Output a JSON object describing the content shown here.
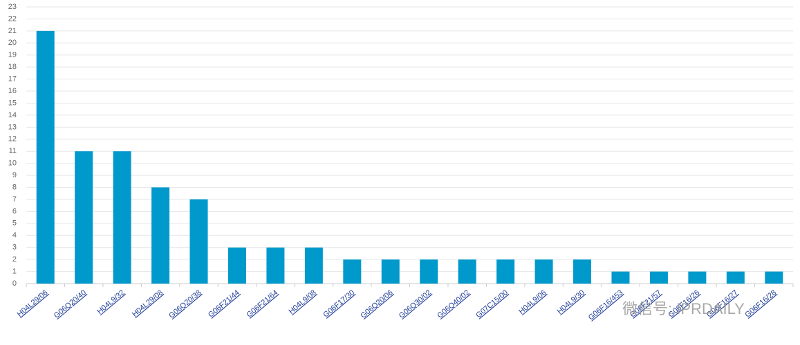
{
  "chart_data": {
    "type": "bar",
    "categories": [
      "H04L29/06",
      "G06Q20/40",
      "H04L9/32",
      "H04L29/08",
      "G06Q20/38",
      "G06F21/44",
      "G06F21/64",
      "H04L9/08",
      "G06F17/30",
      "G06Q20/06",
      "G06Q30/02",
      "G06Q40/02",
      "G07C15/00",
      "H04L9/06",
      "H04L9/30",
      "G06F16/453",
      "G06F21/57",
      "G06F16/26",
      "G06F16/27",
      "G06F16/28"
    ],
    "values": [
      21,
      11,
      11,
      8,
      7,
      3,
      3,
      3,
      2,
      2,
      2,
      2,
      2,
      2,
      2,
      1,
      1,
      1,
      1,
      1
    ],
    "color": "#0099cc",
    "ylim": [
      0,
      23
    ],
    "yticks": [
      0,
      1,
      2,
      3,
      4,
      5,
      6,
      7,
      8,
      9,
      10,
      11,
      12,
      13,
      14,
      15,
      16,
      17,
      18,
      19,
      20,
      21,
      22,
      23
    ],
    "grid": true,
    "watermark": "微信号: IPRDAILY"
  }
}
